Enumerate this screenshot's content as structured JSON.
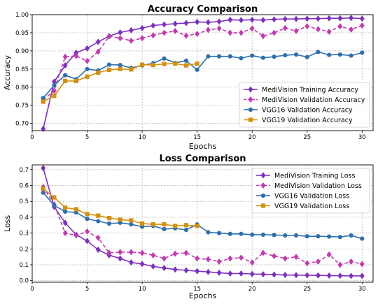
{
  "chart_data": [
    {
      "type": "line",
      "title": "Accuracy Comparison",
      "xlabel": "Epochs",
      "ylabel": "Accuracy",
      "xlim": [
        0,
        31
      ],
      "ylim": [
        0.68,
        1.0
      ],
      "xticks": [
        0,
        5,
        10,
        15,
        20,
        25,
        30
      ],
      "yticks": [
        0.7,
        0.75,
        0.8,
        0.85,
        0.9,
        0.95,
        1.0
      ],
      "ytick_labels": [
        "0.70",
        "0.75",
        "0.80",
        "0.85",
        "0.90",
        "0.95",
        "1.00"
      ],
      "grid": true,
      "legend_position": "lower-right",
      "series": [
        {
          "name": "MediVision Training Accuracy",
          "color": "#7b2fbe",
          "marker": "diamond",
          "dash": "solid",
          "x": [
            1,
            2,
            3,
            4,
            5,
            6,
            7,
            8,
            9,
            10,
            11,
            12,
            13,
            14,
            15,
            16,
            17,
            18,
            19,
            20,
            21,
            22,
            23,
            24,
            25,
            26,
            27,
            28,
            29,
            30
          ],
          "values": [
            0.685,
            0.815,
            0.86,
            0.895,
            0.907,
            0.925,
            0.941,
            0.951,
            0.957,
            0.963,
            0.97,
            0.973,
            0.975,
            0.977,
            0.98,
            0.979,
            0.981,
            0.986,
            0.985,
            0.986,
            0.985,
            0.987,
            0.988,
            0.988,
            0.989,
            0.989,
            0.99,
            0.99,
            0.991,
            0.989
          ]
        },
        {
          "name": "MediVision Validation Accuracy",
          "color": "#c23ab0",
          "marker": "diamond",
          "dash": "dashed",
          "x": [
            1,
            2,
            3,
            4,
            5,
            6,
            7,
            8,
            9,
            10,
            11,
            12,
            13,
            14,
            15,
            16,
            17,
            18,
            19,
            20,
            21,
            22,
            23,
            24,
            25,
            26,
            27,
            28,
            29,
            30
          ],
          "values": [
            0.765,
            0.79,
            0.884,
            0.886,
            0.872,
            0.898,
            0.94,
            0.935,
            0.928,
            0.935,
            0.943,
            0.95,
            0.955,
            0.942,
            0.947,
            0.958,
            0.962,
            0.95,
            0.95,
            0.962,
            0.941,
            0.95,
            0.963,
            0.955,
            0.968,
            0.96,
            0.953,
            0.968,
            0.959,
            0.97
          ]
        },
        {
          "name": "VGG16 Validation Accuracy",
          "color": "#2e6fad",
          "marker": "circle",
          "dash": "solid",
          "x": [
            1,
            2,
            3,
            4,
            5,
            6,
            7,
            8,
            9,
            10,
            11,
            12,
            13,
            14,
            15,
            16,
            17,
            18,
            19,
            20,
            21,
            22,
            23,
            24,
            25,
            26,
            27,
            28,
            29,
            30
          ],
          "values": [
            0.77,
            0.805,
            0.833,
            0.822,
            0.85,
            0.846,
            0.862,
            0.861,
            0.853,
            0.86,
            0.866,
            0.879,
            0.867,
            0.873,
            0.848,
            0.885,
            0.885,
            0.885,
            0.88,
            0.887,
            0.881,
            0.884,
            0.888,
            0.89,
            0.883,
            0.897,
            0.889,
            0.89,
            0.887,
            0.895
          ]
        },
        {
          "name": "VGG19 Validation Accuracy",
          "color": "#d4900f",
          "marker": "square",
          "dash": "solid",
          "x": [
            1,
            2,
            3,
            4,
            5,
            6,
            7,
            8,
            9,
            10,
            11,
            12,
            13,
            14,
            15
          ],
          "values": [
            0.76,
            0.776,
            0.817,
            0.817,
            0.829,
            0.84,
            0.848,
            0.85,
            0.849,
            0.862,
            0.861,
            0.864,
            0.865,
            0.86,
            0.865
          ]
        }
      ]
    },
    {
      "type": "line",
      "title": "Loss Comparison",
      "xlabel": "Epochs",
      "ylabel": "Loss",
      "xlim": [
        0,
        31
      ],
      "ylim": [
        -0.01,
        0.73
      ],
      "xticks": [
        0,
        5,
        10,
        15,
        20,
        25,
        30
      ],
      "yticks": [
        0.0,
        0.1,
        0.2,
        0.3,
        0.4,
        0.5,
        0.6,
        0.7
      ],
      "ytick_labels": [
        "0.0",
        "0.1",
        "0.2",
        "0.3",
        "0.4",
        "0.5",
        "0.6",
        "0.7"
      ],
      "grid": true,
      "legend_position": "upper-right",
      "series": [
        {
          "name": "MediVision Training Loss",
          "color": "#7b2fbe",
          "marker": "diamond",
          "dash": "solid",
          "x": [
            1,
            2,
            3,
            4,
            5,
            6,
            7,
            8,
            9,
            10,
            11,
            12,
            13,
            14,
            15,
            16,
            17,
            18,
            19,
            20,
            21,
            22,
            23,
            24,
            25,
            26,
            27,
            28,
            29,
            30
          ],
          "values": [
            0.71,
            0.465,
            0.365,
            0.29,
            0.25,
            0.195,
            0.16,
            0.14,
            0.115,
            0.105,
            0.09,
            0.08,
            0.07,
            0.065,
            0.06,
            0.055,
            0.05,
            0.045,
            0.045,
            0.042,
            0.04,
            0.038,
            0.036,
            0.035,
            0.034,
            0.033,
            0.032,
            0.031,
            0.03,
            0.03
          ]
        },
        {
          "name": "MediVision Validation Loss",
          "color": "#c23ab0",
          "marker": "diamond",
          "dash": "dashed",
          "x": [
            1,
            2,
            3,
            4,
            5,
            6,
            7,
            8,
            9,
            10,
            11,
            12,
            13,
            14,
            15,
            16,
            17,
            18,
            19,
            20,
            21,
            22,
            23,
            24,
            25,
            26,
            27,
            28,
            29,
            30
          ],
          "values": [
            0.59,
            0.48,
            0.3,
            0.285,
            0.31,
            0.27,
            0.175,
            0.18,
            0.18,
            0.175,
            0.16,
            0.14,
            0.17,
            0.175,
            0.14,
            0.135,
            0.12,
            0.14,
            0.145,
            0.115,
            0.175,
            0.155,
            0.14,
            0.15,
            0.11,
            0.12,
            0.165,
            0.1,
            0.12,
            0.105
          ]
        },
        {
          "name": "VGG16 Validation Loss",
          "color": "#2e6fad",
          "marker": "circle",
          "dash": "solid",
          "x": [
            1,
            2,
            3,
            4,
            5,
            6,
            7,
            8,
            9,
            10,
            11,
            12,
            13,
            14,
            15,
            16,
            17,
            18,
            19,
            20,
            21,
            22,
            23,
            24,
            25,
            26,
            27,
            28,
            29,
            30
          ],
          "values": [
            0.555,
            0.475,
            0.435,
            0.43,
            0.39,
            0.375,
            0.36,
            0.365,
            0.355,
            0.34,
            0.345,
            0.325,
            0.33,
            0.32,
            0.355,
            0.305,
            0.3,
            0.295,
            0.295,
            0.29,
            0.29,
            0.288,
            0.285,
            0.285,
            0.28,
            0.28,
            0.278,
            0.275,
            0.285,
            0.265
          ]
        },
        {
          "name": "VGG19 Validation Loss",
          "color": "#d4900f",
          "marker": "square",
          "dash": "solid",
          "x": [
            1,
            2,
            3,
            4,
            5,
            6,
            7,
            8,
            9,
            10,
            11,
            12,
            13,
            14,
            15
          ],
          "values": [
            0.58,
            0.525,
            0.46,
            0.45,
            0.42,
            0.41,
            0.395,
            0.385,
            0.38,
            0.36,
            0.355,
            0.355,
            0.345,
            0.35,
            0.345
          ]
        }
      ]
    }
  ]
}
